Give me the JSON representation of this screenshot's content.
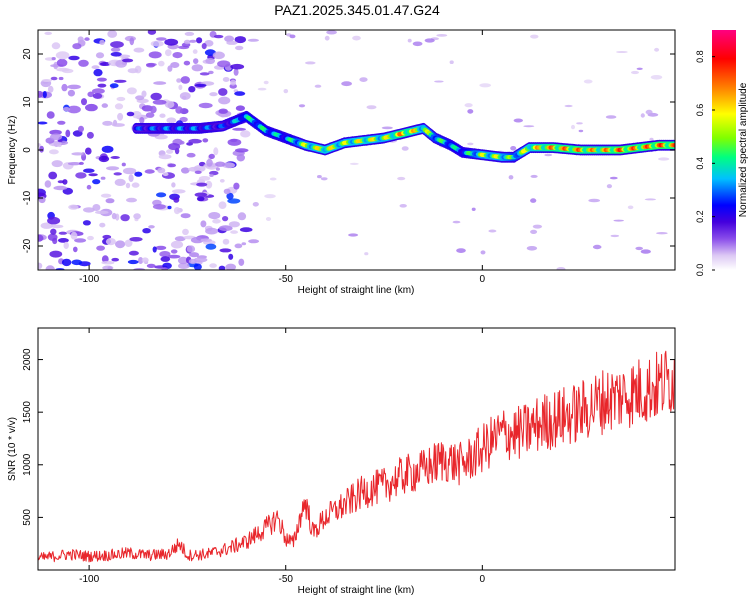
{
  "title": "PAZ1.2025.345.01.47.G24",
  "chart_data": [
    {
      "type": "heatmap",
      "xlabel": "Height of straight line (km)",
      "ylabel": "Frequency (Hz)",
      "xlim": [
        -113,
        49
      ],
      "ylim": [
        -25,
        25
      ],
      "xticks": [
        -100,
        -50,
        0
      ],
      "xtick_labels": [
        "-100",
        "-50",
        "0"
      ],
      "yticks": [
        -20,
        -10,
        0,
        10,
        20
      ],
      "ytick_labels": [
        "-20",
        "-10",
        "0",
        "10",
        "20"
      ],
      "colorbar": {
        "label": "Normalized spectral amplitude",
        "range": [
          0.0,
          0.9
        ],
        "ticks": [
          0.0,
          0.2,
          0.4,
          0.6,
          0.8
        ],
        "tick_labels": [
          "0.0",
          "0.2",
          "0.4",
          "0.6",
          "0.8"
        ],
        "colors": [
          "#ffffff",
          "#ddc9f4",
          "#8a4dea",
          "#4400dd",
          "#0000ff",
          "#00c0ff",
          "#00ff80",
          "#80ff00",
          "#ffff00",
          "#ff8000",
          "#ff0000",
          "#ff0080"
        ]
      },
      "ridge": {
        "name": "dominant frequency",
        "x": [
          -88,
          -80,
          -72,
          -66,
          -60,
          -55,
          -50,
          -45,
          -40,
          -35,
          -30,
          -25,
          -20,
          -15,
          -12,
          -8,
          -5,
          0,
          5,
          8,
          12,
          18,
          25,
          30,
          35,
          40,
          45,
          49
        ],
        "y": [
          4.5,
          4.5,
          4.5,
          5,
          7,
          4,
          2.5,
          1,
          0,
          1.5,
          2,
          2.5,
          3.5,
          4.5,
          2.5,
          1,
          -0.5,
          -1,
          -1.5,
          -1.5,
          0.5,
          0.5,
          0,
          0,
          0,
          0.5,
          1,
          1
        ],
        "amplitude": [
          0.3,
          0.35,
          0.35,
          0.3,
          0.45,
          0.45,
          0.4,
          0.6,
          0.65,
          0.6,
          0.65,
          0.6,
          0.75,
          0.6,
          0.5,
          0.45,
          0.4,
          0.6,
          0.6,
          0.5,
          0.65,
          0.75,
          0.75,
          0.7,
          0.8,
          0.75,
          0.8,
          0.75
        ]
      },
      "noise_region": {
        "x_range": [
          -113,
          -60
        ],
        "y_range": [
          -25,
          25
        ]
      }
    },
    {
      "type": "line",
      "xlabel": "Height of straight line (km)",
      "ylabel": "SNR (10 * v/v)",
      "xlim": [
        -113,
        49
      ],
      "ylim": [
        0,
        2300
      ],
      "xticks": [
        -100,
        -50,
        0
      ],
      "xtick_labels": [
        "-100",
        "-50",
        "0"
      ],
      "yticks": [
        500,
        1000,
        1500,
        2000
      ],
      "ytick_labels": [
        "500",
        "1000",
        "1500",
        "2000"
      ],
      "series": [
        {
          "name": "SNR",
          "color": "#e8262b",
          "x": [
            -113,
            -105,
            -100,
            -95,
            -90,
            -85,
            -80,
            -77,
            -75,
            -70,
            -65,
            -60,
            -55,
            -52,
            -50,
            -48,
            -46,
            -45,
            -43,
            -40,
            -35,
            -30,
            -25,
            -20,
            -15,
            -10,
            -5,
            0,
            5,
            10,
            15,
            20,
            25,
            30,
            35,
            40,
            45,
            49
          ],
          "values": [
            110,
            150,
            130,
            140,
            160,
            140,
            150,
            250,
            140,
            150,
            200,
            270,
            400,
            500,
            300,
            250,
            550,
            650,
            350,
            500,
            620,
            750,
            800,
            900,
            950,
            1050,
            1000,
            1150,
            1300,
            1300,
            1400,
            1450,
            1500,
            1600,
            1650,
            1700,
            1750,
            1850
          ]
        }
      ]
    }
  ]
}
